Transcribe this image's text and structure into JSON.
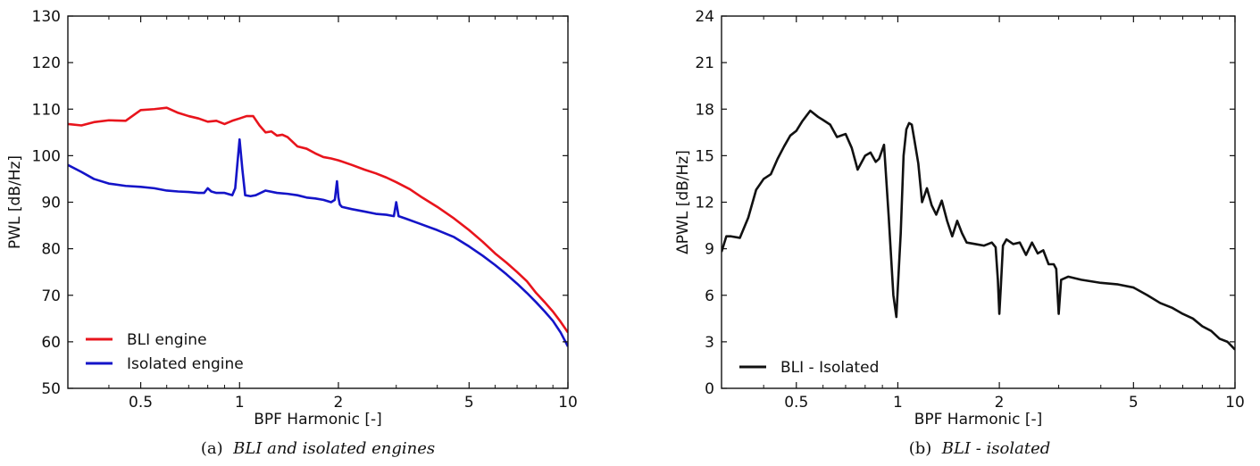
{
  "chart_data": [
    {
      "type": "line",
      "panel": "a",
      "caption_letter": "(a)",
      "caption_title": "BLI and isolated engines",
      "xlabel": "BPF Harmonic [-]",
      "ylabel": "PWL [dB/Hz]",
      "xscale": "log",
      "xlim": [
        0.3,
        10
      ],
      "ylim": [
        50,
        130
      ],
      "xticks": [
        0.5,
        1,
        2,
        5,
        10
      ],
      "xtick_labels": [
        "0.5",
        "1",
        "2",
        "5",
        "10"
      ],
      "yticks": [
        50,
        60,
        70,
        80,
        90,
        100,
        110,
        120,
        130
      ],
      "ytick_labels": [
        "50",
        "60",
        "70",
        "80",
        "90",
        "100",
        "110",
        "120",
        "130"
      ],
      "grid": false,
      "legend_position": "bottom-left",
      "series": [
        {
          "name": "BLI engine",
          "color": "#e8141c",
          "x": [
            0.3,
            0.33,
            0.36,
            0.4,
            0.45,
            0.5,
            0.55,
            0.6,
            0.65,
            0.7,
            0.75,
            0.8,
            0.85,
            0.9,
            0.95,
            1.0,
            1.05,
            1.1,
            1.15,
            1.2,
            1.25,
            1.3,
            1.35,
            1.4,
            1.5,
            1.6,
            1.7,
            1.8,
            1.9,
            2.0,
            2.2,
            2.4,
            2.6,
            2.8,
            3.0,
            3.3,
            3.6,
            4.0,
            4.5,
            5.0,
            5.5,
            6.0,
            6.5,
            7.0,
            7.5,
            8.0,
            8.5,
            9.0,
            9.5,
            10.0
          ],
          "y": [
            106.8,
            106.5,
            107.2,
            107.6,
            107.5,
            109.8,
            110.0,
            110.3,
            109.2,
            108.5,
            108.0,
            107.3,
            107.5,
            106.8,
            107.5,
            108.0,
            108.5,
            108.5,
            106.5,
            105.0,
            105.2,
            104.3,
            104.5,
            104.0,
            102.0,
            101.5,
            100.5,
            99.7,
            99.4,
            99.0,
            98.0,
            97.0,
            96.2,
            95.3,
            94.3,
            92.8,
            91.0,
            89.0,
            86.5,
            84.0,
            81.5,
            79.0,
            77.0,
            75.0,
            73.0,
            70.5,
            68.5,
            66.5,
            64.3,
            62.0
          ]
        },
        {
          "name": "Isolated engine",
          "color": "#1414c8",
          "x": [
            0.3,
            0.33,
            0.36,
            0.4,
            0.45,
            0.5,
            0.55,
            0.6,
            0.65,
            0.7,
            0.75,
            0.78,
            0.8,
            0.82,
            0.85,
            0.9,
            0.95,
            0.97,
            1.0,
            1.02,
            1.04,
            1.08,
            1.12,
            1.2,
            1.3,
            1.4,
            1.5,
            1.6,
            1.7,
            1.8,
            1.9,
            1.95,
            1.98,
            2.0,
            2.02,
            2.05,
            2.2,
            2.4,
            2.6,
            2.8,
            2.95,
            3.0,
            3.05,
            3.2,
            3.5,
            4.0,
            4.5,
            5.0,
            5.5,
            6.0,
            6.5,
            7.0,
            7.5,
            8.0,
            8.5,
            9.0,
            9.5,
            10.0
          ],
          "y": [
            98.0,
            96.5,
            95.0,
            94.0,
            93.5,
            93.3,
            93.0,
            92.5,
            92.3,
            92.2,
            92.0,
            92.0,
            93.0,
            92.3,
            92.0,
            92.0,
            91.5,
            93.0,
            103.5,
            97.0,
            91.5,
            91.3,
            91.5,
            92.5,
            92.0,
            91.8,
            91.5,
            91.0,
            90.8,
            90.5,
            90.0,
            90.5,
            94.5,
            91.0,
            89.5,
            89.0,
            88.5,
            88.0,
            87.5,
            87.3,
            87.0,
            90.0,
            87.0,
            86.5,
            85.5,
            84.0,
            82.5,
            80.5,
            78.5,
            76.5,
            74.5,
            72.5,
            70.5,
            68.5,
            66.5,
            64.5,
            62.0,
            59.0
          ]
        }
      ]
    },
    {
      "type": "line",
      "panel": "b",
      "caption_letter": "(b)",
      "caption_title": "BLI - isolated",
      "xlabel": "BPF Harmonic [-]",
      "ylabel": "ΔPWL [dB/Hz]",
      "xscale": "log",
      "xlim": [
        0.3,
        10
      ],
      "ylim": [
        0,
        24
      ],
      "xticks": [
        0.5,
        1,
        2,
        5,
        10
      ],
      "xtick_labels": [
        "0.5",
        "1",
        "2",
        "5",
        "10"
      ],
      "yticks": [
        0,
        3,
        6,
        9,
        12,
        15,
        18,
        21,
        24
      ],
      "ytick_labels": [
        "0",
        "3",
        "6",
        "9",
        "12",
        "15",
        "18",
        "21",
        "24"
      ],
      "grid": false,
      "legend_position": "bottom-left",
      "series": [
        {
          "name": "BLI - Isolated",
          "color": "#111111",
          "x": [
            0.3,
            0.31,
            0.32,
            0.34,
            0.36,
            0.38,
            0.4,
            0.42,
            0.44,
            0.46,
            0.48,
            0.5,
            0.52,
            0.55,
            0.58,
            0.6,
            0.63,
            0.66,
            0.7,
            0.73,
            0.76,
            0.8,
            0.83,
            0.86,
            0.88,
            0.91,
            0.94,
            0.97,
            0.99,
            1.0,
            1.02,
            1.04,
            1.06,
            1.08,
            1.1,
            1.12,
            1.15,
            1.18,
            1.22,
            1.26,
            1.3,
            1.35,
            1.4,
            1.45,
            1.5,
            1.55,
            1.6,
            1.7,
            1.8,
            1.9,
            1.95,
            1.98,
            2.0,
            2.02,
            2.05,
            2.1,
            2.2,
            2.3,
            2.4,
            2.5,
            2.6,
            2.7,
            2.8,
            2.9,
            2.95,
            3.0,
            3.05,
            3.2,
            3.5,
            4.0,
            4.5,
            5.0,
            5.5,
            6.0,
            6.5,
            7.0,
            7.5,
            8.0,
            8.5,
            9.0,
            9.5,
            10.0
          ],
          "y": [
            8.8,
            9.8,
            9.8,
            9.7,
            11.0,
            12.8,
            13.5,
            13.8,
            14.8,
            15.6,
            16.3,
            16.6,
            17.2,
            17.9,
            17.5,
            17.3,
            17.0,
            16.2,
            16.4,
            15.5,
            14.1,
            15.0,
            15.2,
            14.6,
            14.8,
            15.7,
            11.0,
            6.0,
            4.6,
            6.5,
            10.0,
            15.0,
            16.7,
            17.1,
            17.0,
            16.0,
            14.5,
            12.0,
            12.9,
            11.8,
            11.2,
            12.1,
            10.8,
            9.8,
            10.8,
            10.0,
            9.4,
            9.3,
            9.2,
            9.4,
            9.1,
            7.0,
            4.8,
            6.5,
            9.2,
            9.6,
            9.3,
            9.4,
            8.6,
            9.4,
            8.7,
            8.9,
            8.0,
            8.0,
            7.7,
            4.8,
            7.0,
            7.2,
            7.0,
            6.8,
            6.7,
            6.5,
            6.0,
            5.5,
            5.2,
            4.8,
            4.5,
            4.0,
            3.7,
            3.2,
            3.0,
            2.5
          ]
        }
      ]
    }
  ]
}
